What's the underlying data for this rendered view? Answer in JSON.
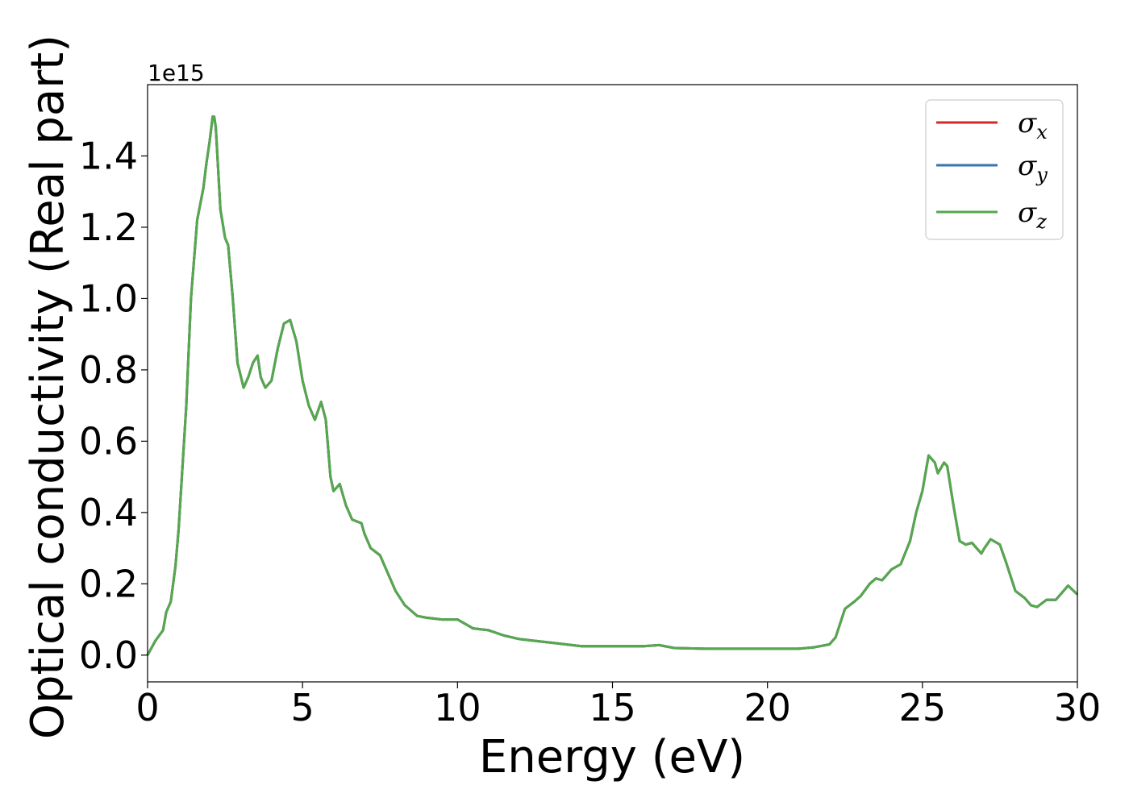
{
  "chart_data": {
    "type": "line",
    "xlabel": "Energy (eV)",
    "ylabel": "Optical conductivity (Real part)",
    "y_offset_label": "1e15",
    "xlim": [
      0,
      30
    ],
    "ylim": [
      -0.075,
      1.6
    ],
    "xticks": [
      0,
      5,
      10,
      15,
      20,
      25,
      30
    ],
    "xtick_labels": [
      "0",
      "5",
      "10",
      "15",
      "20",
      "25",
      "30"
    ],
    "yticks": [
      0.0,
      0.2,
      0.4,
      0.6,
      0.8,
      1.0,
      1.2,
      1.4
    ],
    "ytick_labels": [
      "0.0",
      "0.2",
      "0.4",
      "0.6",
      "0.8",
      "1.0",
      "1.2",
      "1.4"
    ],
    "grid": false,
    "legend_position": "top-right",
    "series": [
      {
        "name": "σ",
        "subscript": "x",
        "color": "#d62728"
      },
      {
        "name": "σ",
        "subscript": "y",
        "color": "#3b75af"
      },
      {
        "name": "σ",
        "subscript": "z",
        "color": "#55a84d"
      }
    ],
    "x": [
      0,
      0.25,
      0.5,
      0.6,
      0.75,
      0.9,
      1.0,
      1.25,
      1.4,
      1.6,
      1.8,
      1.9,
      2.0,
      2.1,
      2.15,
      2.2,
      2.35,
      2.5,
      2.6,
      2.75,
      2.9,
      3.1,
      3.25,
      3.4,
      3.55,
      3.65,
      3.8,
      4.0,
      4.2,
      4.4,
      4.6,
      4.8,
      5.0,
      5.2,
      5.4,
      5.6,
      5.75,
      5.9,
      6.0,
      6.2,
      6.4,
      6.6,
      6.9,
      7.0,
      7.2,
      7.5,
      7.8,
      8.0,
      8.3,
      8.7,
      9.0,
      9.5,
      10.0,
      10.5,
      11.0,
      11.5,
      12.0,
      12.5,
      13.0,
      13.5,
      14.0,
      15.0,
      16.0,
      16.5,
      17.0,
      18.0,
      19.0,
      20.0,
      21.0,
      21.5,
      22.0,
      22.2,
      22.5,
      22.8,
      23.0,
      23.3,
      23.5,
      23.7,
      24.0,
      24.3,
      24.6,
      24.8,
      25.0,
      25.2,
      25.4,
      25.5,
      25.7,
      25.8,
      26.0,
      26.2,
      26.4,
      26.6,
      26.9,
      27.0,
      27.2,
      27.5,
      27.7,
      28.0,
      28.3,
      28.5,
      28.7,
      29.0,
      29.3,
      29.7,
      30.0
    ],
    "y": [
      0.0,
      0.04,
      0.07,
      0.12,
      0.15,
      0.25,
      0.35,
      0.7,
      1.0,
      1.22,
      1.31,
      1.38,
      1.44,
      1.51,
      1.51,
      1.48,
      1.25,
      1.17,
      1.15,
      1.0,
      0.82,
      0.75,
      0.78,
      0.82,
      0.84,
      0.78,
      0.75,
      0.77,
      0.86,
      0.93,
      0.94,
      0.88,
      0.77,
      0.7,
      0.66,
      0.71,
      0.66,
      0.5,
      0.46,
      0.48,
      0.42,
      0.38,
      0.37,
      0.34,
      0.3,
      0.28,
      0.22,
      0.18,
      0.14,
      0.11,
      0.105,
      0.1,
      0.1,
      0.075,
      0.07,
      0.055,
      0.045,
      0.04,
      0.035,
      0.03,
      0.025,
      0.025,
      0.025,
      0.028,
      0.02,
      0.018,
      0.018,
      0.018,
      0.018,
      0.022,
      0.03,
      0.05,
      0.13,
      0.15,
      0.165,
      0.2,
      0.215,
      0.21,
      0.24,
      0.255,
      0.32,
      0.4,
      0.46,
      0.56,
      0.54,
      0.51,
      0.54,
      0.53,
      0.42,
      0.32,
      0.31,
      0.315,
      0.285,
      0.3,
      0.325,
      0.31,
      0.26,
      0.18,
      0.16,
      0.14,
      0.135,
      0.155,
      0.155,
      0.195,
      0.17
    ]
  }
}
